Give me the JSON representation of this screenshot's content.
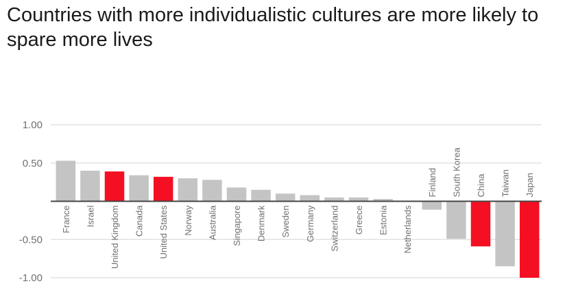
{
  "chart_data": {
    "type": "bar",
    "title": "Countries with more individualistic cultures are more likely to spare more lives",
    "xlabel": "",
    "ylabel": "",
    "ylim": [
      -1.0,
      1.0
    ],
    "yticks": [
      1.0,
      0.5,
      -0.5,
      -1.0
    ],
    "ytick_labels": [
      "1.00",
      "0.50",
      "-0.50",
      "-1.00"
    ],
    "grid": true,
    "legend": "none",
    "categories": [
      "France",
      "Israel",
      "United Kingdom",
      "Canada",
      "United States",
      "Norway",
      "Australia",
      "Singapore",
      "Denmark",
      "Sweden",
      "Germany",
      "Switzerland",
      "Greece",
      "Estonia",
      "Netherlands",
      "Finland",
      "South Korea",
      "China",
      "Taiwan",
      "Japan"
    ],
    "values": [
      0.53,
      0.4,
      0.39,
      0.34,
      0.32,
      0.3,
      0.28,
      0.18,
      0.15,
      0.1,
      0.08,
      0.05,
      0.05,
      0.03,
      0.0,
      -0.11,
      -0.49,
      -0.59,
      -0.85,
      -1.0
    ],
    "highlighted": [
      "United Kingdom",
      "United States",
      "China",
      "Japan"
    ],
    "colors": {
      "default": "#c4c4c4",
      "highlight": "#f50f22",
      "grid": "#e2e2e2",
      "baseline": "#444444"
    }
  }
}
